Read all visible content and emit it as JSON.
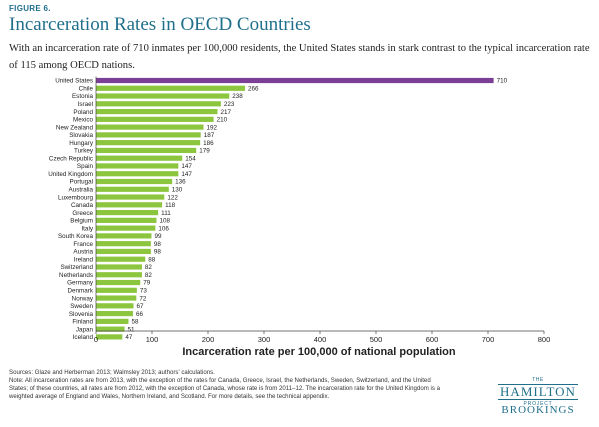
{
  "figure_label": "FIGURE 6.",
  "title": "Incarceration Rates in OECD Countries",
  "subtitle": "With an incarceration rate of 710 inmates per 100,000 residents, the United States stands in stark contrast to the typical incarceration rate of 115 among OECD nations.",
  "sources": "Sources: Glaze and Herberman 2013; Walmsley 2013; authors' calculations.",
  "note": "Note: All incarceration rates are from 2013, with the exception of the rates for Canada, Greece, Israel, the Netherlands, Sweden, Switzerland, and the United States; of these countries, all rates are from 2012, with the exception of Canada, whose rate is from 2011–12. The incarceration rate for the United Kingdom is a weighted average of England and Wales, Northern Ireland, and Scotland. For more details, see the technical appendix.",
  "logo": {
    "the": "THE",
    "hamilton": "HAMILTON",
    "project": "PROJECT",
    "brookings": "BROOKINGS"
  },
  "colors": {
    "highlight": "#7b3f98",
    "bar": "#8cc63f",
    "title": "#1f6f8b"
  },
  "chart_data": {
    "type": "bar",
    "orientation": "horizontal",
    "xlabel": "Incarceration rate per 100,000 of national population",
    "xlim": [
      0,
      800
    ],
    "xticks": [
      0,
      100,
      200,
      300,
      400,
      500,
      600,
      700,
      800
    ],
    "grid": false,
    "data_labels": true,
    "highlight_category": "United States",
    "categories": [
      "United States",
      "Chile",
      "Estonia",
      "Israel",
      "Poland",
      "Mexico",
      "New Zealand",
      "Slovakia",
      "Hungary",
      "Turkey",
      "Czech Republic",
      "Spain",
      "United Kingdom",
      "Portugal",
      "Australia",
      "Luxembourg",
      "Canada",
      "Greece",
      "Belgium",
      "Italy",
      "South Korea",
      "France",
      "Austria",
      "Ireland",
      "Switzerland",
      "Netherlands",
      "Germany",
      "Denmark",
      "Norway",
      "Sweden",
      "Slovenia",
      "Finland",
      "Japan",
      "Iceland"
    ],
    "values": [
      710,
      266,
      238,
      223,
      217,
      210,
      192,
      187,
      186,
      179,
      154,
      147,
      147,
      136,
      130,
      122,
      118,
      111,
      108,
      106,
      99,
      98,
      98,
      88,
      82,
      82,
      79,
      73,
      72,
      67,
      66,
      58,
      51,
      47
    ]
  }
}
